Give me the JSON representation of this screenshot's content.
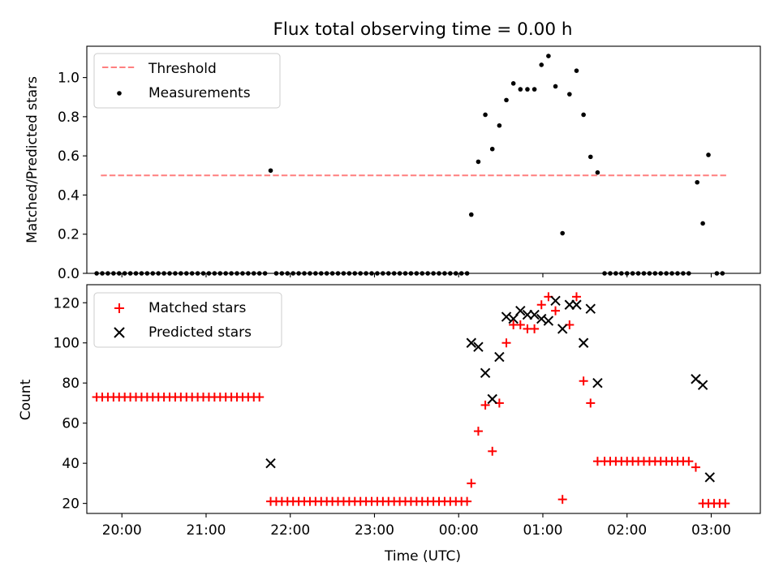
{
  "chart_data": [
    {
      "type": "scatter",
      "title": "Flux total observing time = 0.00 h",
      "ylabel": "Matched/Predicted stars",
      "xlabel": "",
      "ylim": [
        0,
        1.16
      ],
      "yticks": [
        "0.0",
        "0.2",
        "0.4",
        "0.6",
        "0.8",
        "1.0"
      ],
      "xlim": [
        "19:35",
        "03:35"
      ],
      "grid": false,
      "legend_position": "top-left",
      "threshold": {
        "name": "Threshold",
        "value": 0.5,
        "x_start": "19:45",
        "x_end": "03:12",
        "color": "#ff7f7f"
      },
      "measurements": {
        "name": "Measurements",
        "color": "#000000",
        "points": [
          [
            "19:42",
            0
          ],
          [
            "19:46",
            0
          ],
          [
            "19:50",
            0
          ],
          [
            "19:54",
            0
          ],
          [
            "19:58",
            0
          ],
          [
            "20:02",
            0
          ],
          [
            "20:06",
            0
          ],
          [
            "20:10",
            0
          ],
          [
            "20:14",
            0
          ],
          [
            "20:18",
            0
          ],
          [
            "20:22",
            0
          ],
          [
            "20:26",
            0
          ],
          [
            "20:30",
            0
          ],
          [
            "20:34",
            0
          ],
          [
            "20:38",
            0
          ],
          [
            "20:42",
            0
          ],
          [
            "20:46",
            0
          ],
          [
            "20:50",
            0
          ],
          [
            "20:54",
            0
          ],
          [
            "20:58",
            0
          ],
          [
            "21:02",
            0
          ],
          [
            "21:06",
            0
          ],
          [
            "21:10",
            0
          ],
          [
            "21:14",
            0
          ],
          [
            "21:18",
            0
          ],
          [
            "21:22",
            0
          ],
          [
            "21:26",
            0
          ],
          [
            "21:30",
            0
          ],
          [
            "21:34",
            0
          ],
          [
            "21:38",
            0
          ],
          [
            "21:42",
            0
          ],
          [
            "21:46",
            0.525
          ],
          [
            "21:50",
            0
          ],
          [
            "21:54",
            0
          ],
          [
            "21:58",
            0
          ],
          [
            "22:02",
            0
          ],
          [
            "22:06",
            0
          ],
          [
            "22:10",
            0
          ],
          [
            "22:14",
            0
          ],
          [
            "22:18",
            0
          ],
          [
            "22:22",
            0
          ],
          [
            "22:26",
            0
          ],
          [
            "22:30",
            0
          ],
          [
            "22:34",
            0
          ],
          [
            "22:38",
            0
          ],
          [
            "22:42",
            0
          ],
          [
            "22:46",
            0
          ],
          [
            "22:50",
            0
          ],
          [
            "22:54",
            0
          ],
          [
            "22:58",
            0
          ],
          [
            "23:02",
            0
          ],
          [
            "23:06",
            0
          ],
          [
            "23:10",
            0
          ],
          [
            "23:14",
            0
          ],
          [
            "23:18",
            0
          ],
          [
            "23:22",
            0
          ],
          [
            "23:26",
            0
          ],
          [
            "23:30",
            0
          ],
          [
            "23:34",
            0
          ],
          [
            "23:38",
            0
          ],
          [
            "23:42",
            0
          ],
          [
            "23:46",
            0
          ],
          [
            "23:50",
            0
          ],
          [
            "23:54",
            0
          ],
          [
            "23:58",
            0
          ],
          [
            "00:02",
            0
          ],
          [
            "00:06",
            0
          ],
          [
            "00:09",
            0.3
          ],
          [
            "00:14",
            0.57
          ],
          [
            "00:19",
            0.81
          ],
          [
            "00:24",
            0.635
          ],
          [
            "00:29",
            0.755
          ],
          [
            "00:34",
            0.885
          ],
          [
            "00:39",
            0.97
          ],
          [
            "00:44",
            0.94
          ],
          [
            "00:49",
            0.94
          ],
          [
            "00:54",
            0.94
          ],
          [
            "00:59",
            1.065
          ],
          [
            "01:04",
            1.11
          ],
          [
            "01:09",
            0.955
          ],
          [
            "01:14",
            0.205
          ],
          [
            "01:19",
            0.915
          ],
          [
            "01:24",
            1.035
          ],
          [
            "01:29",
            0.81
          ],
          [
            "01:34",
            0.595
          ],
          [
            "01:39",
            0.515
          ],
          [
            "01:44",
            0
          ],
          [
            "01:48",
            0
          ],
          [
            "01:52",
            0
          ],
          [
            "01:56",
            0
          ],
          [
            "02:00",
            0
          ],
          [
            "02:04",
            0
          ],
          [
            "02:08",
            0
          ],
          [
            "02:12",
            0
          ],
          [
            "02:16",
            0
          ],
          [
            "02:20",
            0
          ],
          [
            "02:24",
            0
          ],
          [
            "02:28",
            0
          ],
          [
            "02:32",
            0
          ],
          [
            "02:36",
            0
          ],
          [
            "02:40",
            0
          ],
          [
            "02:44",
            0
          ],
          [
            "02:50",
            0.465
          ],
          [
            "02:54",
            0.255
          ],
          [
            "02:58",
            0.605
          ],
          [
            "03:04",
            0
          ],
          [
            "03:08",
            0
          ]
        ]
      }
    },
    {
      "type": "scatter",
      "title": "",
      "ylabel": "Count",
      "xlabel": "Time (UTC)",
      "ylim": [
        15,
        129
      ],
      "yticks": [
        "20",
        "40",
        "60",
        "80",
        "100",
        "120"
      ],
      "xlim": [
        "19:35",
        "03:35"
      ],
      "xticks": [
        "20:00",
        "21:00",
        "22:00",
        "23:00",
        "00:00",
        "01:00",
        "02:00",
        "03:00"
      ],
      "grid": false,
      "legend_position": "top-left",
      "series": [
        {
          "name": "Matched stars",
          "marker": "plus",
          "color": "#ff0000",
          "points": [
            [
              "19:42",
              73
            ],
            [
              "19:46",
              73
            ],
            [
              "19:50",
              73
            ],
            [
              "19:54",
              73
            ],
            [
              "19:58",
              73
            ],
            [
              "20:02",
              73
            ],
            [
              "20:06",
              73
            ],
            [
              "20:10",
              73
            ],
            [
              "20:14",
              73
            ],
            [
              "20:18",
              73
            ],
            [
              "20:22",
              73
            ],
            [
              "20:26",
              73
            ],
            [
              "20:30",
              73
            ],
            [
              "20:34",
              73
            ],
            [
              "20:38",
              73
            ],
            [
              "20:42",
              73
            ],
            [
              "20:46",
              73
            ],
            [
              "20:50",
              73
            ],
            [
              "20:54",
              73
            ],
            [
              "20:58",
              73
            ],
            [
              "21:02",
              73
            ],
            [
              "21:06",
              73
            ],
            [
              "21:10",
              73
            ],
            [
              "21:14",
              73
            ],
            [
              "21:18",
              73
            ],
            [
              "21:22",
              73
            ],
            [
              "21:26",
              73
            ],
            [
              "21:30",
              73
            ],
            [
              "21:34",
              73
            ],
            [
              "21:38",
              73
            ],
            [
              "21:46",
              21
            ],
            [
              "21:50",
              21
            ],
            [
              "21:54",
              21
            ],
            [
              "21:58",
              21
            ],
            [
              "22:02",
              21
            ],
            [
              "22:06",
              21
            ],
            [
              "22:10",
              21
            ],
            [
              "22:14",
              21
            ],
            [
              "22:18",
              21
            ],
            [
              "22:22",
              21
            ],
            [
              "22:26",
              21
            ],
            [
              "22:30",
              21
            ],
            [
              "22:34",
              21
            ],
            [
              "22:38",
              21
            ],
            [
              "22:42",
              21
            ],
            [
              "22:46",
              21
            ],
            [
              "22:50",
              21
            ],
            [
              "22:54",
              21
            ],
            [
              "22:58",
              21
            ],
            [
              "23:02",
              21
            ],
            [
              "23:06",
              21
            ],
            [
              "23:10",
              21
            ],
            [
              "23:14",
              21
            ],
            [
              "23:18",
              21
            ],
            [
              "23:22",
              21
            ],
            [
              "23:26",
              21
            ],
            [
              "23:30",
              21
            ],
            [
              "23:34",
              21
            ],
            [
              "23:38",
              21
            ],
            [
              "23:42",
              21
            ],
            [
              "23:46",
              21
            ],
            [
              "23:50",
              21
            ],
            [
              "23:54",
              21
            ],
            [
              "23:58",
              21
            ],
            [
              "00:02",
              21
            ],
            [
              "00:06",
              21
            ],
            [
              "00:09",
              30
            ],
            [
              "00:14",
              56
            ],
            [
              "00:19",
              69
            ],
            [
              "00:24",
              46
            ],
            [
              "00:29",
              70
            ],
            [
              "00:34",
              100
            ],
            [
              "00:39",
              109
            ],
            [
              "00:44",
              109
            ],
            [
              "00:49",
              107
            ],
            [
              "00:54",
              107
            ],
            [
              "00:59",
              119
            ],
            [
              "01:04",
              123
            ],
            [
              "01:09",
              116
            ],
            [
              "01:14",
              22
            ],
            [
              "01:19",
              109
            ],
            [
              "01:24",
              123
            ],
            [
              "01:29",
              81
            ],
            [
              "01:34",
              70
            ],
            [
              "01:39",
              41
            ],
            [
              "01:44",
              41
            ],
            [
              "01:48",
              41
            ],
            [
              "01:52",
              41
            ],
            [
              "01:56",
              41
            ],
            [
              "02:00",
              41
            ],
            [
              "02:04",
              41
            ],
            [
              "02:08",
              41
            ],
            [
              "02:12",
              41
            ],
            [
              "02:16",
              41
            ],
            [
              "02:20",
              41
            ],
            [
              "02:24",
              41
            ],
            [
              "02:28",
              41
            ],
            [
              "02:32",
              41
            ],
            [
              "02:36",
              41
            ],
            [
              "02:40",
              41
            ],
            [
              "02:44",
              41
            ],
            [
              "02:49",
              38
            ],
            [
              "02:54",
              20
            ],
            [
              "02:58",
              20
            ],
            [
              "03:02",
              20
            ],
            [
              "03:06",
              20
            ],
            [
              "03:10",
              20
            ]
          ]
        },
        {
          "name": "Predicted stars",
          "marker": "x",
          "color": "#000000",
          "points": [
            [
              "21:46",
              40
            ],
            [
              "00:09",
              100
            ],
            [
              "00:14",
              98
            ],
            [
              "00:19",
              85
            ],
            [
              "00:24",
              72
            ],
            [
              "00:29",
              93
            ],
            [
              "00:34",
              113
            ],
            [
              "00:39",
              112
            ],
            [
              "00:44",
              116
            ],
            [
              "00:49",
              114
            ],
            [
              "00:54",
              114
            ],
            [
              "00:59",
              112
            ],
            [
              "01:04",
              111
            ],
            [
              "01:09",
              121
            ],
            [
              "01:14",
              107
            ],
            [
              "01:19",
              119
            ],
            [
              "01:24",
              119
            ],
            [
              "01:29",
              100
            ],
            [
              "01:34",
              117
            ],
            [
              "01:39",
              80
            ],
            [
              "02:49",
              82
            ],
            [
              "02:54",
              79
            ],
            [
              "02:59",
              33
            ]
          ]
        }
      ]
    }
  ]
}
